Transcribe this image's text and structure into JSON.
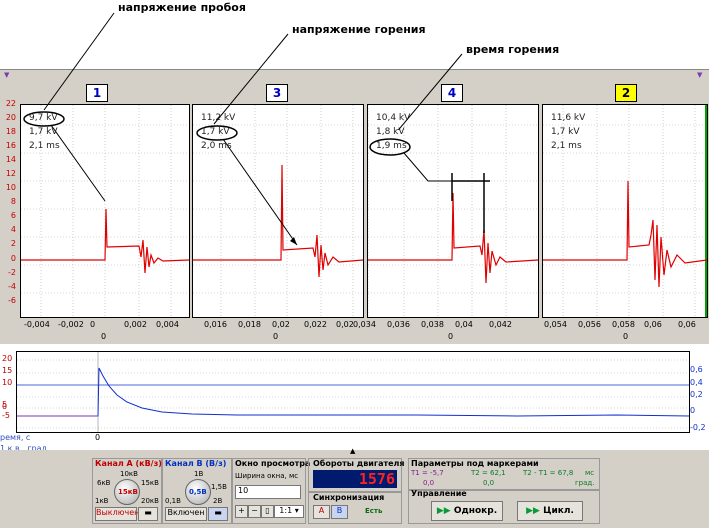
{
  "annotations": {
    "breakdown": "напряжение пробоя",
    "burning_voltage": "напряжение горения",
    "burning_time": "время горения"
  },
  "panels": [
    {
      "number": "1",
      "current": false,
      "kv_peak": "9,7 kV",
      "kv_burn": "1,7 kV",
      "time": "2,1 ms",
      "x_ticks": [
        "-0,004",
        "-0,002",
        "0",
        "0,002",
        "0,004"
      ],
      "zero_label": "0"
    },
    {
      "number": "3",
      "current": false,
      "kv_peak": "11,2 kV",
      "kv_burn": "1,7 kV",
      "time": "2,0 ms",
      "x_ticks": [
        "0,016",
        "0,018",
        "0,02",
        "0,022",
        "0,02"
      ],
      "zero_label": "0"
    },
    {
      "number": "4",
      "current": false,
      "kv_peak": "10,4 kV",
      "kv_burn": "1,8 kV",
      "time": "1,9 ms",
      "x_ticks": [
        "0,034",
        "0,036",
        "0,038",
        "0,04",
        "0,042"
      ],
      "zero_label": "0"
    },
    {
      "number": "2",
      "current": true,
      "kv_peak": "11,6 kV",
      "kv_burn": "1,7 kV",
      "time": "2,1 ms",
      "x_ticks": [
        "0,054",
        "0,056",
        "0,058",
        "0,06",
        "0,06"
      ],
      "zero_label": "0"
    }
  ],
  "y_axis_ticks": [
    "22",
    "20",
    "18",
    "16",
    "14",
    "12",
    "10",
    "8",
    "6",
    "4",
    "2",
    "0",
    "-2",
    "-4",
    "-6"
  ],
  "bottom_plot": {
    "left_ticks": [
      "20",
      "15",
      "10",
      "5",
      "0",
      "-5"
    ],
    "right_ticks": [
      "0,6",
      "0,4",
      "0,2",
      "0",
      "-0,2"
    ],
    "x_label": "ремя, с",
    "x_zero": "0",
    "sub_label": "1.к.в., град."
  },
  "controls": {
    "channel_a": {
      "title": "Канал А (кВ/з)",
      "knob_value": "15кВ",
      "ticks": [
        "10кВ",
        "6кВ",
        "15кВ",
        "1кВ",
        "20кВ"
      ],
      "status": "Выключен"
    },
    "channel_b": {
      "title": "Канал В (В/з)",
      "knob_value": "0,5В",
      "ticks": [
        "1В",
        "1,5В",
        "0,1В",
        "2В"
      ],
      "status": "Включен"
    },
    "window": {
      "title": "Окно просмотра",
      "width_label": "Ширина окна, мс",
      "width_value": "10",
      "zoom_value": "1:1"
    },
    "engine": {
      "title": "Обороты двигателя",
      "rpm": "1576"
    },
    "sync": {
      "title": "Синхронизация",
      "a": "A",
      "b": "B",
      "state": "Есть"
    },
    "markers": {
      "title": "Параметры под маркерами",
      "t1_label": "T1 = -5,7",
      "t1_value": "0,0",
      "t2_label": "T2 = 62,1",
      "t2_value": "0,0",
      "dt_label": "T2 - T1 = 67,8",
      "dt_unit1": "мс",
      "dt_unit2": "град."
    },
    "manage": {
      "title": "Управление",
      "single": "Однокр.",
      "cycle": "Цикл."
    }
  },
  "colors": {
    "trace": "#e00000",
    "bottom_trace": "#1030d0",
    "rpm_bg": "#001a6e",
    "rpm_fg": "#ff2020"
  }
}
